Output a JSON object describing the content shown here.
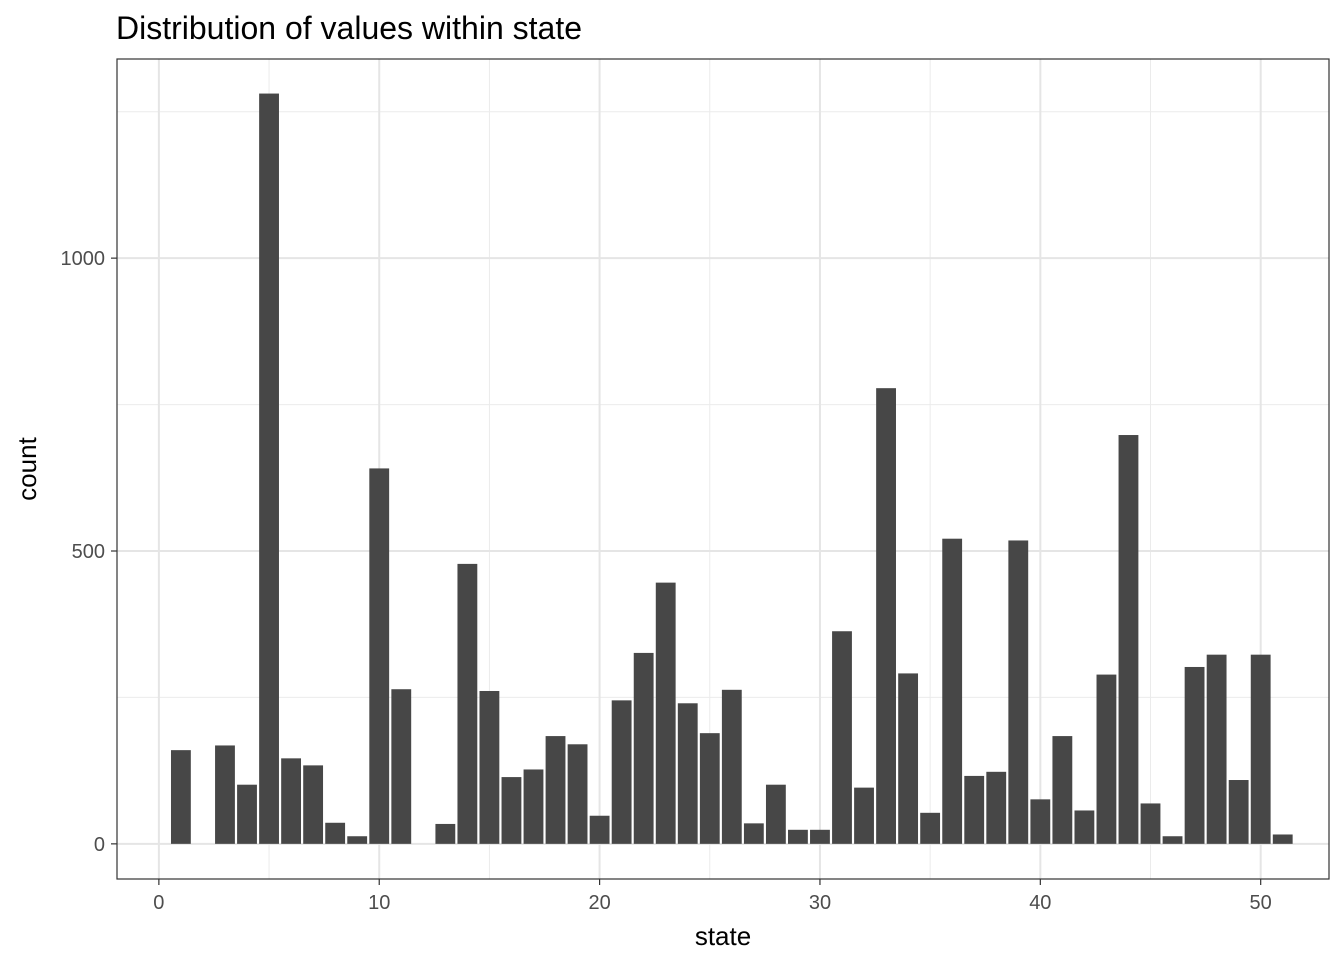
{
  "chart_data": {
    "type": "bar",
    "title": "Distribution of values within state",
    "xlabel": "state",
    "ylabel": "count",
    "xlim": [
      -1.9,
      53.1
    ],
    "ylim": [
      -60,
      1340
    ],
    "x_ticks": [
      0,
      10,
      20,
      30,
      40,
      50
    ],
    "y_ticks": [
      0,
      500,
      1000
    ],
    "grid": true,
    "bar_color": "#474747",
    "x": [
      1,
      3,
      4,
      5,
      6,
      7,
      8,
      9,
      10,
      11,
      13,
      14,
      15,
      16,
      17,
      18,
      19,
      20,
      21,
      22,
      23,
      24,
      25,
      26,
      27,
      28,
      29,
      30,
      31,
      32,
      33,
      34,
      35,
      36,
      37,
      38,
      39,
      40,
      41,
      42,
      43,
      44,
      45,
      46,
      47,
      48,
      49,
      50,
      51
    ],
    "values": [
      160,
      168,
      101,
      1281,
      146,
      134,
      36,
      13,
      641,
      264,
      34,
      478,
      261,
      114,
      127,
      184,
      170,
      48,
      245,
      326,
      446,
      240,
      189,
      263,
      35,
      101,
      24,
      24,
      363,
      96,
      778,
      291,
      53,
      521,
      116,
      123,
      518,
      76,
      184,
      57,
      289,
      698,
      69,
      13,
      302,
      323,
      109,
      323,
      16
    ]
  }
}
